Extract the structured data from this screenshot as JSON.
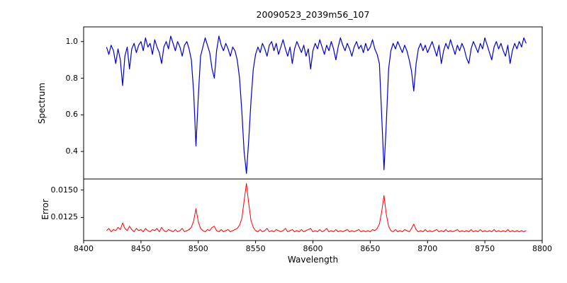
{
  "chart_data": {
    "type": "line",
    "title": "20090523_2039m56_107",
    "xlabel": "Wavelength",
    "xlim": [
      8400,
      8800
    ],
    "xticks": [
      8400,
      8450,
      8500,
      8550,
      8600,
      8650,
      8700,
      8750,
      8800
    ],
    "x_start": 8420,
    "x_step": 2,
    "grid": false,
    "legend": "none",
    "panels": [
      {
        "ylabel": "Spectrum",
        "color": "#0000cc",
        "ylim": [
          0.25,
          1.08
        ],
        "yticks": [
          0.4,
          0.6,
          0.8,
          1.0
        ],
        "ytick_labels": [
          "0.4",
          "0.6",
          "0.8",
          "1.0"
        ],
        "notable_features": "absorption lines near 8498, 8542, 8662 (Ca II triplet), smaller dips near 8434 and 8688"
      },
      {
        "ylabel": "Error",
        "color": "#ff0000",
        "ylim": [
          0.0104,
          0.016
        ],
        "yticks": [
          0.0125,
          0.015
        ],
        "ytick_labels": [
          "0.0125",
          "0.0150"
        ],
        "notable_features": "baseline ~0.0113 with peaks at 8498, 8542, 8662"
      }
    ],
    "series": [
      {
        "name": "spectrum",
        "values": [
          0.97,
          0.93,
          0.98,
          0.95,
          0.88,
          0.96,
          0.9,
          0.76,
          0.92,
          0.97,
          0.85,
          0.96,
          0.99,
          0.94,
          0.98,
          1.0,
          0.95,
          1.02,
          0.97,
          0.99,
          0.93,
          1.01,
          0.97,
          0.94,
          0.88,
          0.97,
          1.0,
          0.96,
          1.03,
          0.99,
          0.95,
          1.0,
          0.97,
          0.92,
          0.98,
          1.0,
          0.96,
          0.9,
          0.72,
          0.43,
          0.7,
          0.92,
          0.97,
          1.02,
          0.98,
          0.94,
          0.85,
          0.8,
          0.95,
          1.03,
          0.98,
          0.95,
          0.99,
          0.96,
          0.92,
          0.97,
          0.95,
          0.9,
          0.8,
          0.62,
          0.4,
          0.28,
          0.46,
          0.68,
          0.85,
          0.93,
          0.97,
          0.94,
          0.99,
          0.96,
          0.92,
          0.98,
          1.0,
          0.95,
          0.99,
          0.93,
          0.97,
          1.01,
          0.96,
          0.92,
          0.97,
          0.88,
          0.96,
          1.0,
          0.97,
          0.94,
          0.98,
          0.92,
          0.96,
          0.85,
          0.95,
          0.99,
          0.96,
          1.01,
          0.97,
          0.93,
          0.98,
          0.95,
          1.0,
          0.96,
          0.9,
          0.97,
          1.02,
          0.98,
          0.95,
          0.99,
          0.96,
          0.92,
          0.97,
          1.0,
          0.96,
          0.98,
          0.94,
          0.99,
          0.95,
          0.97,
          1.01,
          0.96,
          0.93,
          0.88,
          0.6,
          0.3,
          0.55,
          0.85,
          0.95,
          0.99,
          0.96,
          1.0,
          0.97,
          0.94,
          0.98,
          0.95,
          0.9,
          0.84,
          0.73,
          0.88,
          0.96,
          0.99,
          0.95,
          0.98,
          0.94,
          0.97,
          1.0,
          0.96,
          0.92,
          0.98,
          0.88,
          0.95,
          0.99,
          0.96,
          1.01,
          0.97,
          0.93,
          0.98,
          0.95,
          0.99,
          0.96,
          0.91,
          0.88,
          0.96,
          1.0,
          0.97,
          0.94,
          0.99,
          0.96,
          1.02,
          0.98,
          0.94,
          0.9,
          0.97,
          1.0,
          0.96,
          0.99,
          0.95,
          0.92,
          0.98,
          0.88,
          0.95,
          0.99,
          0.96,
          1.0,
          0.97,
          1.02,
          0.99
        ]
      },
      {
        "name": "error",
        "values": [
          0.0113,
          0.0115,
          0.0112,
          0.0114,
          0.0113,
          0.0116,
          0.0114,
          0.012,
          0.0115,
          0.0113,
          0.0117,
          0.0114,
          0.0112,
          0.0115,
          0.0113,
          0.0114,
          0.0112,
          0.0115,
          0.0113,
          0.0112,
          0.0114,
          0.0113,
          0.0115,
          0.0112,
          0.0116,
          0.0113,
          0.0112,
          0.0114,
          0.0113,
          0.0112,
          0.0114,
          0.0112,
          0.0113,
          0.0115,
          0.0112,
          0.0113,
          0.0114,
          0.0116,
          0.0122,
          0.0133,
          0.0121,
          0.0115,
          0.0113,
          0.0112,
          0.0114,
          0.0113,
          0.0116,
          0.0117,
          0.0113,
          0.0112,
          0.0114,
          0.0112,
          0.0113,
          0.0114,
          0.0112,
          0.0113,
          0.0114,
          0.0115,
          0.0118,
          0.0124,
          0.014,
          0.0156,
          0.0138,
          0.0122,
          0.0116,
          0.0113,
          0.0112,
          0.0114,
          0.0112,
          0.0113,
          0.0115,
          0.0112,
          0.0113,
          0.0112,
          0.0114,
          0.0113,
          0.0112,
          0.0113,
          0.0115,
          0.0112,
          0.0113,
          0.0114,
          0.0112,
          0.0113,
          0.0112,
          0.0114,
          0.0112,
          0.0113,
          0.0114,
          0.0115,
          0.0112,
          0.0113,
          0.0112,
          0.0114,
          0.0112,
          0.0113,
          0.0115,
          0.0112,
          0.0113,
          0.0112,
          0.0114,
          0.0112,
          0.0113,
          0.0112,
          0.0113,
          0.0114,
          0.0112,
          0.0113,
          0.0112,
          0.0113,
          0.0114,
          0.0112,
          0.0113,
          0.0112,
          0.0113,
          0.0112,
          0.0114,
          0.0113,
          0.0115,
          0.0119,
          0.013,
          0.0145,
          0.0128,
          0.0117,
          0.0113,
          0.0112,
          0.0114,
          0.0112,
          0.0113,
          0.0112,
          0.0114,
          0.0113,
          0.0112,
          0.0115,
          0.0119,
          0.0114,
          0.0112,
          0.0113,
          0.0112,
          0.0114,
          0.0112,
          0.0113,
          0.0112,
          0.0113,
          0.0114,
          0.0112,
          0.0113,
          0.0112,
          0.0114,
          0.0112,
          0.0113,
          0.0112,
          0.0113,
          0.0114,
          0.0112,
          0.0113,
          0.0112,
          0.0113,
          0.0112,
          0.0114,
          0.0112,
          0.0113,
          0.0112,
          0.0114,
          0.0112,
          0.0113,
          0.0112,
          0.0113,
          0.0112,
          0.0114,
          0.0112,
          0.0113,
          0.0112,
          0.0113,
          0.0112,
          0.0114,
          0.0112,
          0.0113,
          0.0112,
          0.0113,
          0.0112,
          0.0113,
          0.0112,
          0.0113
        ]
      }
    ]
  }
}
